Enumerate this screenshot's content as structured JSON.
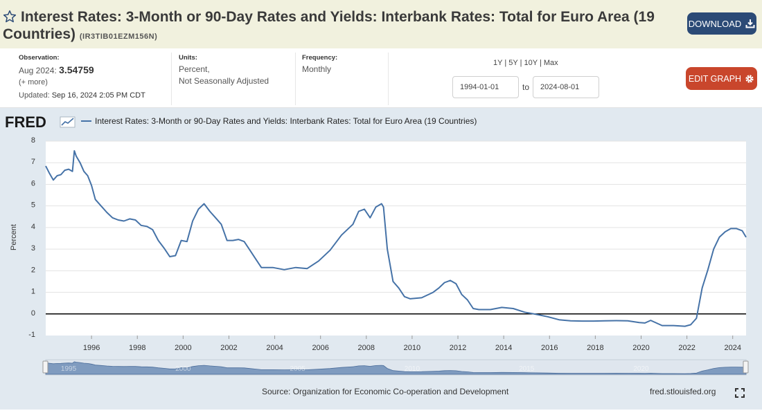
{
  "header": {
    "title_line1": "Interest Rates: 3-Month or 90-Day Rates and Yields: Interbank Rates: Total for Euro Area (19",
    "title_line2": "Countries)",
    "series_id": "(IR3TIB01EZM156N)",
    "download_label": "DOWNLOAD"
  },
  "meta": {
    "observation_label": "Observation:",
    "observation_date": "Aug 2024:",
    "observation_value": "3.54759",
    "more_link": "(+ more)",
    "updated_label": "Updated:",
    "updated_value": "Sep 16, 2024 2:05 PM CDT",
    "units_label": "Units:",
    "units_line1": "Percent,",
    "units_line2": "Not Seasonally Adjusted",
    "frequency_label": "Frequency:",
    "frequency_value": "Monthly",
    "range_1y": "1Y",
    "range_5y": "5Y",
    "range_10y": "10Y",
    "range_max": "Max",
    "range_sep": "|",
    "start_date": "1994-01-01",
    "to_label": "to",
    "end_date": "2024-08-01",
    "edit_label": "EDIT GRAPH"
  },
  "chart_logo": "FRED",
  "footer": {
    "source": "Source: Organization for Economic Co-operation and Development",
    "site": "fred.stlouisfed.org"
  },
  "navigator_labels": [
    "1995",
    "2000",
    "2005",
    "2010",
    "2015",
    "2020"
  ],
  "colors": {
    "series": "#4572a7",
    "zero_line": "#000000",
    "plot_bg": "#ffffff",
    "chart_bg": "#e1e9f0",
    "download_btn": "#2b4a76",
    "edit_btn": "#c9462c"
  },
  "chart_data": {
    "type": "line",
    "legend": "Interest Rates: 3-Month or 90-Day Rates and Yields: Interbank Rates: Total for Euro Area (19 Countries)",
    "ylabel": "Percent",
    "ylim": [
      -1,
      8
    ],
    "xlim": [
      "1994-01-01",
      "2024-08-01"
    ],
    "yticks": [
      "8",
      "7",
      "6",
      "5",
      "4",
      "3",
      "2",
      "1",
      "0",
      "-1"
    ],
    "xticks": [
      "1996",
      "1998",
      "2000",
      "2002",
      "2004",
      "2006",
      "2008",
      "2010",
      "2012",
      "2014",
      "2016",
      "2018",
      "2020",
      "2022",
      "2024"
    ],
    "grid": true,
    "series": [
      {
        "name": "Interest Rates: 3-Month or 90-Day Rates and Yields: Interbank Rates: Total for Euro Area (19 Countries)",
        "x": [
          "1994-01",
          "1994-03",
          "1994-05",
          "1994-07",
          "1994-09",
          "1994-11",
          "1995-01",
          "1995-03",
          "1995-04",
          "1995-05",
          "1995-07",
          "1995-09",
          "1995-11",
          "1996-01",
          "1996-03",
          "1996-06",
          "1996-09",
          "1996-12",
          "1997-03",
          "1997-06",
          "1997-09",
          "1997-12",
          "1998-03",
          "1998-06",
          "1998-09",
          "1998-12",
          "1999-03",
          "1999-06",
          "1999-09",
          "1999-12",
          "2000-03",
          "2000-06",
          "2000-09",
          "2000-12",
          "2001-03",
          "2001-06",
          "2001-09",
          "2001-12",
          "2002-03",
          "2002-06",
          "2002-09",
          "2002-12",
          "2003-03",
          "2003-06",
          "2003-09",
          "2003-12",
          "2004-06",
          "2004-12",
          "2005-06",
          "2005-12",
          "2006-06",
          "2006-12",
          "2007-06",
          "2007-09",
          "2007-12",
          "2008-03",
          "2008-06",
          "2008-09",
          "2008-10",
          "2008-12",
          "2009-03",
          "2009-06",
          "2009-09",
          "2009-12",
          "2010-06",
          "2010-12",
          "2011-03",
          "2011-06",
          "2011-09",
          "2011-12",
          "2012-03",
          "2012-06",
          "2012-09",
          "2012-12",
          "2013-06",
          "2013-12",
          "2014-06",
          "2014-12",
          "2015-06",
          "2015-12",
          "2016-06",
          "2016-12",
          "2017-06",
          "2017-12",
          "2018-06",
          "2018-12",
          "2019-06",
          "2019-12",
          "2020-03",
          "2020-06",
          "2020-12",
          "2021-06",
          "2021-12",
          "2022-03",
          "2022-06",
          "2022-09",
          "2022-12",
          "2023-03",
          "2023-06",
          "2023-09",
          "2023-12",
          "2024-03",
          "2024-06",
          "2024-08"
        ],
        "y": [
          6.85,
          6.5,
          6.2,
          6.4,
          6.45,
          6.65,
          6.7,
          6.6,
          7.55,
          7.3,
          7.0,
          6.6,
          6.4,
          5.95,
          5.3,
          5.0,
          4.7,
          4.45,
          4.35,
          4.3,
          4.4,
          4.35,
          4.1,
          4.05,
          3.9,
          3.4,
          3.05,
          2.65,
          2.7,
          3.4,
          3.35,
          4.3,
          4.85,
          5.1,
          4.75,
          4.45,
          4.15,
          3.4,
          3.4,
          3.45,
          3.35,
          2.95,
          2.55,
          2.15,
          2.15,
          2.15,
          2.05,
          2.15,
          2.1,
          2.45,
          2.95,
          3.65,
          4.15,
          4.75,
          4.85,
          4.45,
          4.95,
          5.1,
          4.95,
          3.0,
          1.5,
          1.2,
          0.8,
          0.7,
          0.75,
          1.0,
          1.2,
          1.45,
          1.55,
          1.4,
          0.9,
          0.65,
          0.25,
          0.2,
          0.2,
          0.3,
          0.25,
          0.08,
          -0.02,
          -0.13,
          -0.27,
          -0.32,
          -0.33,
          -0.33,
          -0.32,
          -0.31,
          -0.32,
          -0.4,
          -0.42,
          -0.3,
          -0.54,
          -0.54,
          -0.57,
          -0.5,
          -0.2,
          1.2,
          2.05,
          3.0,
          3.55,
          3.8,
          3.95,
          3.95,
          3.85,
          3.55
        ]
      }
    ]
  }
}
